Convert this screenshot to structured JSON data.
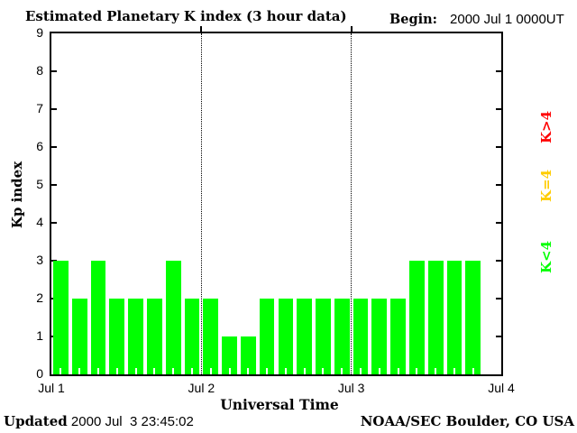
{
  "title": "Estimated Planetary K index (3 hour data)",
  "header": {
    "begin_label": "Begin:",
    "begin_value": "2000 Jul 1 0000UT"
  },
  "legend": [
    {
      "label": "K>4",
      "color": "#ff0000"
    },
    {
      "label": "K=4",
      "color": "#ffcc00"
    },
    {
      "label": "K<4",
      "color": "#00ff00"
    }
  ],
  "footer": {
    "updated_label": "Updated",
    "updated_value": " 2000 Jul  3 23:45:02",
    "source": "NOAA/SEC Boulder, CO USA"
  },
  "chart_data": {
    "type": "bar",
    "title": "Estimated Planetary K index (3 hour data)",
    "xlabel": "Universal Time",
    "ylabel": "Kp index",
    "ylim": [
      0,
      9
    ],
    "y_ticks": [
      0,
      1,
      2,
      3,
      4,
      5,
      6,
      7,
      8,
      9
    ],
    "x_ticks": [
      "Jul 1",
      "Jul 2",
      "Jul 3",
      "Jul 4"
    ],
    "slots_per_day": 8,
    "interval_hours": 3,
    "bar_color": "#00ff00",
    "grid": "dotted vertical lines at day boundaries",
    "series": [
      {
        "day": "Jul 1",
        "values": [
          3,
          2,
          3,
          2,
          2,
          2,
          3,
          2
        ]
      },
      {
        "day": "Jul 2",
        "values": [
          2,
          1,
          1,
          2,
          2,
          2,
          2,
          2
        ]
      },
      {
        "day": "Jul 3",
        "values": [
          2,
          2,
          2,
          3,
          3,
          3,
          3
        ]
      }
    ]
  }
}
